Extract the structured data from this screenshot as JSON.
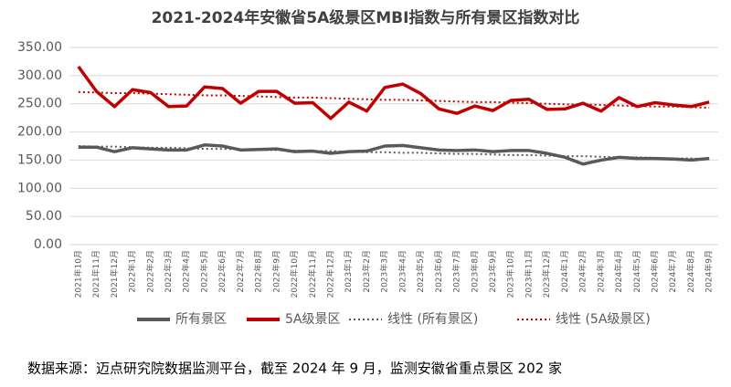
{
  "chart_data": {
    "type": "line",
    "title": "2021-2024年安徽省5A级景区MBI指数与所有景区指数对比",
    "categories": [
      "2021年10月",
      "2021年11月",
      "2021年12月",
      "2022年1月",
      "2022年2月",
      "2022年3月",
      "2022年4月",
      "2022年5月",
      "2022年6月",
      "2022年7月",
      "2022年8月",
      "2022年9月",
      "2022年10月",
      "2022年11月",
      "2022年12月",
      "2023年1月",
      "2023年2月",
      "2023年3月",
      "2023年4月",
      "2023年5月",
      "2023年6月",
      "2023年7月",
      "2023年8月",
      "2023年9月",
      "2023年10月",
      "2023年11月",
      "2023年12月",
      "2024年1月",
      "2024年2月",
      "2024年3月",
      "2024年4月",
      "2024年5月",
      "2024年6月",
      "2024年7月",
      "2024年8月",
      "2024年9月"
    ],
    "series": [
      {
        "name": "所有景区",
        "color": "#595959",
        "dotted": false,
        "values": [
          173,
          173,
          165,
          172,
          170,
          168,
          168,
          177,
          175,
          168,
          169,
          170,
          165,
          166,
          162,
          165,
          166,
          175,
          176,
          172,
          168,
          167,
          168,
          165,
          167,
          167,
          162,
          155,
          143,
          150,
          155,
          153,
          153,
          152,
          150,
          153
        ]
      },
      {
        "name": "5A级景区",
        "color": "#c00000",
        "dotted": false,
        "values": [
          316,
          272,
          245,
          275,
          270,
          245,
          246,
          280,
          277,
          251,
          272,
          272,
          251,
          252,
          224,
          253,
          237,
          279,
          285,
          268,
          241,
          233,
          246,
          238,
          256,
          258,
          240,
          241,
          251,
          237,
          261,
          245,
          252,
          248,
          245,
          253
        ]
      },
      {
        "name": "线性 (所有景区)",
        "color": "#595959",
        "dotted": true,
        "values": [
          175,
          174,
          174,
          173,
          172,
          172,
          171,
          170,
          170,
          169,
          168,
          168,
          167,
          166,
          166,
          165,
          164,
          164,
          163,
          163,
          162,
          161,
          161,
          160,
          159,
          159,
          158,
          157,
          157,
          156,
          155,
          155,
          154,
          153,
          153,
          152
        ]
      },
      {
        "name": "线性 (5A级景区)",
        "color": "#c00000",
        "dotted": true,
        "values": [
          271,
          270,
          269,
          269,
          268,
          267,
          266,
          265,
          265,
          264,
          263,
          262,
          261,
          261,
          260,
          259,
          258,
          257,
          257,
          256,
          255,
          254,
          253,
          253,
          252,
          251,
          250,
          249,
          249,
          248,
          247,
          246,
          245,
          245,
          244,
          243
        ]
      }
    ],
    "ylim": [
      0,
      350
    ],
    "yticks": [
      {
        "value": 0,
        "label": "0.00"
      },
      {
        "value": 50,
        "label": "50.00"
      },
      {
        "value": 100,
        "label": "100.00"
      },
      {
        "value": 150,
        "label": "150.00"
      },
      {
        "value": 200,
        "label": "200.00"
      },
      {
        "value": 250,
        "label": "250.00"
      },
      {
        "value": 300,
        "label": "300.00"
      },
      {
        "value": 350,
        "label": "350.00"
      }
    ],
    "grid": true,
    "legend": "bottom",
    "footnote": "数据来源：迈点研究院数据监测平台，截至 2024 年 9 月，监测安徽省重点景区 202 家"
  }
}
